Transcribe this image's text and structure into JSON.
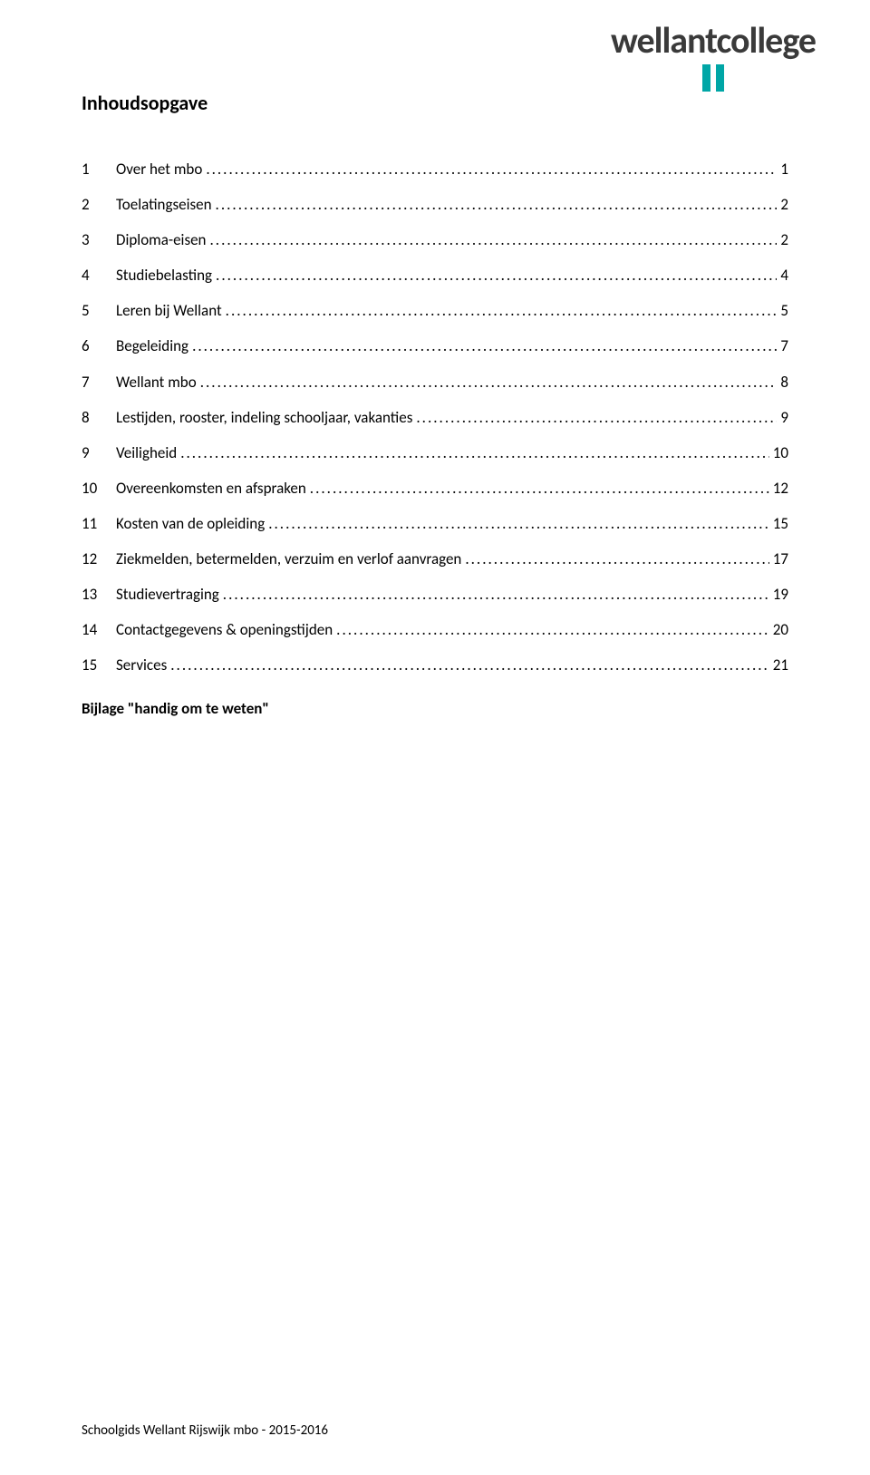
{
  "logo": {
    "text": "wellantcollege",
    "bar_color": "#00a6a6",
    "text_color": "#3a3a3a"
  },
  "title": "Inhoudsopgave",
  "toc": [
    {
      "num": "1",
      "label": "Over het mbo",
      "page": "1"
    },
    {
      "num": "2",
      "label": "Toelatingseisen",
      "page": "2"
    },
    {
      "num": "3",
      "label": "Diploma-eisen",
      "page": "2"
    },
    {
      "num": "4",
      "label": "Studiebelasting",
      "page": "4"
    },
    {
      "num": "5",
      "label": "Leren bij Wellant",
      "page": "5"
    },
    {
      "num": "6",
      "label": "Begeleiding",
      "page": "7"
    },
    {
      "num": "7",
      "label": "Wellant mbo",
      "page": "8"
    },
    {
      "num": "8",
      "label": "Lestijden, rooster, indeling schooljaar, vakanties",
      "page": "9"
    },
    {
      "num": "9",
      "label": "Veiligheid",
      "page": "10"
    },
    {
      "num": "10",
      "label": "Overeenkomsten en afspraken",
      "page": "12"
    },
    {
      "num": "11",
      "label": "Kosten van de opleiding",
      "page": "15"
    },
    {
      "num": "12",
      "label": "Ziekmelden, betermelden, verzuim en verlof aanvragen",
      "page": "17"
    },
    {
      "num": "13",
      "label": "Studievertraging",
      "page": "19"
    },
    {
      "num": "14",
      "label": "Contactgegevens & openingstijden",
      "page": "20"
    },
    {
      "num": "15",
      "label": "Services",
      "page": "21"
    }
  ],
  "appendix": "Bijlage \"handig om te weten\"",
  "footer": "Schoolgids Wellant Rijswijk mbo - 2015-2016",
  "colors": {
    "background": "#ffffff",
    "text": "#000000"
  },
  "typography": {
    "title_fontsize": 22,
    "body_fontsize": 17,
    "footer_fontsize": 15,
    "logo_fontsize": 40
  }
}
